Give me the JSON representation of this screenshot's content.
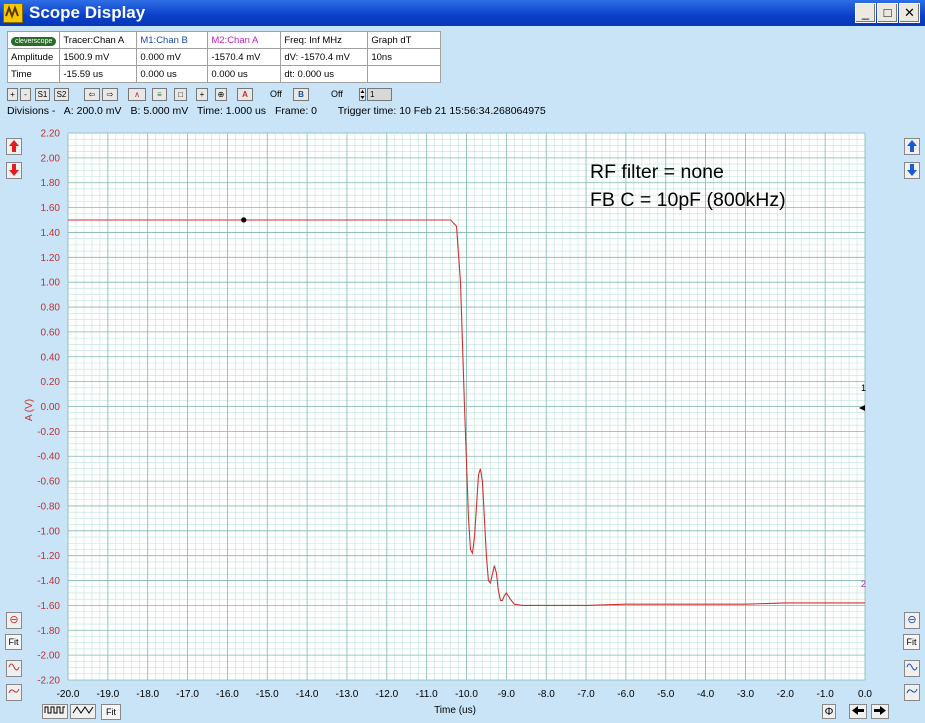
{
  "window": {
    "title": "Scope Display",
    "minimize_glyph": "_",
    "maximize_glyph": "□",
    "close_glyph": "✕"
  },
  "info_table": {
    "logo": "cleverscope",
    "headers": [
      "Tracer:Chan A",
      "M1:Chan B",
      "M2:Chan A",
      "Freq: Inf MHz",
      "Graph dT"
    ],
    "rows": [
      {
        "label": "Amplitude",
        "cells": [
          "1500.9 mV",
          "0.000 mV",
          "-1570.4 mV",
          "dV: -1570.4 mV",
          "10ns"
        ]
      },
      {
        "label": "Time",
        "cells": [
          "-15.59 us",
          "0.000 us",
          "0.000 us",
          "dt:  0.000 us",
          ""
        ]
      }
    ],
    "header_colors": [
      "#000000",
      "#1a4aa8",
      "#c020c0",
      "#000000",
      "#000000"
    ]
  },
  "toolbar": {
    "buttons": [
      "+",
      "-",
      "S1",
      "S2",
      "⇦",
      "⇨",
      "∧",
      "≡",
      "□",
      "+",
      "⊕",
      "A",
      "B"
    ],
    "a_state": "Off",
    "b_state": "Off",
    "frame_spinner": "1"
  },
  "divisions": {
    "label": "Divisions -",
    "a": "A: 200.0 mV",
    "b": "B: 5.000 mV",
    "time": "Time: 1.000 us",
    "frame": "Frame: 0",
    "trigger": "Trigger time: 10 Feb 21 15:56:34.268064975"
  },
  "annotations": [
    "RF filter = none",
    "FB C = 10pF (800kHz)"
  ],
  "marker_labels": {
    "right_top": "1",
    "right_bottom": "2"
  },
  "bottom_controls": {
    "fit_label": "Fit",
    "left_fit_label": "Fit"
  },
  "chart_data": {
    "type": "line",
    "xlabel": "Time (us)",
    "ylabel": "A (V)",
    "xlim": [
      -20.0,
      0.0
    ],
    "ylim": [
      -2.2,
      2.2
    ],
    "x_ticks": [
      "-20.0",
      "-19.0",
      "-18.0",
      "-17.0",
      "-16.0",
      "-15.0",
      "-14.0",
      "-13.0",
      "-12.0",
      "-11.0",
      "-10.0",
      "-9.0",
      "-8.0",
      "-7.0",
      "-6.0",
      "-5.0",
      "-4.0",
      "-3.0",
      "-2.0",
      "-1.0",
      "0.0"
    ],
    "y_ticks": [
      "2.20",
      "2.00",
      "1.80",
      "1.60",
      "1.40",
      "1.20",
      "1.00",
      "0.80",
      "0.60",
      "0.40",
      "0.20",
      "0.00",
      "-0.20",
      "-0.40",
      "-0.60",
      "-0.80",
      "-1.00",
      "-1.20",
      "-1.40",
      "-1.60",
      "-1.80",
      "-2.00",
      "-2.20"
    ],
    "grid": true,
    "series": [
      {
        "color": "#d03030",
        "x": [
          -20.0,
          -18.0,
          -16.0,
          -14.0,
          -12.0,
          -10.4,
          -10.25,
          -10.15,
          -10.05,
          -9.95,
          -9.9,
          -9.85,
          -9.8,
          -9.75,
          -9.7,
          -9.65,
          -9.6,
          -9.55,
          -9.5,
          -9.45,
          -9.4,
          -9.35,
          -9.3,
          -9.25,
          -9.2,
          -9.15,
          -9.1,
          -9.05,
          -9.0,
          -8.9,
          -8.8,
          -8.6,
          -8.4,
          -8.0,
          -7.0,
          -6.0,
          -5.0,
          -4.0,
          -3.0,
          -2.0,
          -1.0,
          0.0
        ],
        "y": [
          1.5,
          1.5,
          1.5,
          1.5,
          1.5,
          1.5,
          1.45,
          1.0,
          0.0,
          -0.9,
          -1.15,
          -1.18,
          -1.05,
          -0.8,
          -0.55,
          -0.5,
          -0.6,
          -0.9,
          -1.2,
          -1.4,
          -1.42,
          -1.35,
          -1.28,
          -1.34,
          -1.48,
          -1.56,
          -1.56,
          -1.52,
          -1.5,
          -1.55,
          -1.59,
          -1.6,
          -1.6,
          -1.6,
          -1.6,
          -1.59,
          -1.59,
          -1.59,
          -1.59,
          -1.58,
          -1.58,
          -1.58
        ]
      }
    ],
    "tracer_point": {
      "x": -15.59,
      "y": 1.5009,
      "color": "#000000"
    }
  }
}
